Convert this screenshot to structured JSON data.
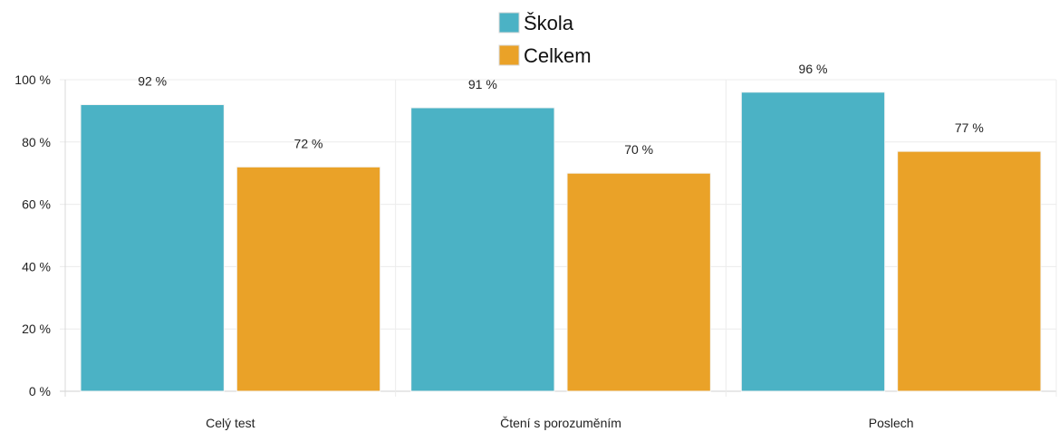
{
  "chart_data": {
    "type": "bar",
    "categories": [
      "Celý test",
      "Čtení s porozuměním",
      "Poslech"
    ],
    "series": [
      {
        "name": "Škola",
        "values": [
          92,
          91,
          96
        ],
        "value_labels": [
          "92 %",
          "91 %",
          "96 %"
        ],
        "color": "#4bb2c5"
      },
      {
        "name": "Celkem",
        "values": [
          72,
          70,
          77
        ],
        "value_labels": [
          "72 %",
          "70 %",
          "77 %"
        ],
        "color": "#eaa228"
      }
    ],
    "title": "",
    "xlabel": "",
    "ylabel": "",
    "ylim": [
      0,
      100
    ],
    "yticks": [
      0,
      20,
      40,
      60,
      80,
      100
    ],
    "ytick_labels": [
      "0 %",
      "20 %",
      "40 %",
      "60 %",
      "80 %",
      "100 %"
    ],
    "grid": true,
    "legend_position": "top-center"
  }
}
